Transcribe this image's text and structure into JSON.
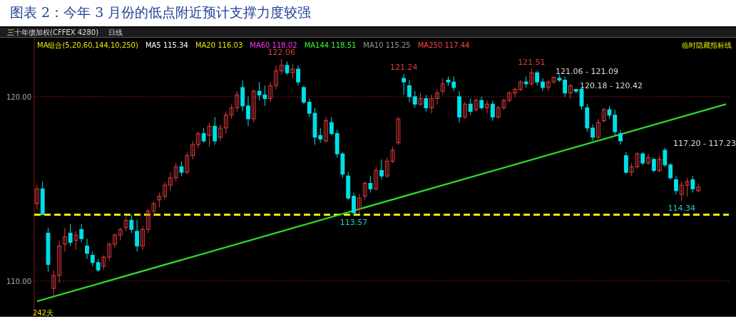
{
  "chart_data": {
    "type": "candlestick",
    "title": "图表 2：今年 3 月份的低点附近预计支撑力度较强",
    "categories": [
      null,
      null,
      null,
      null,
      null,
      null,
      null,
      null,
      null,
      null,
      null,
      null,
      null,
      null,
      null,
      null,
      null,
      null,
      null,
      null,
      null,
      null,
      null,
      null,
      null,
      null,
      null,
      null,
      null,
      null,
      null,
      null,
      null,
      null,
      null,
      null,
      null,
      null,
      null,
      null,
      null,
      null,
      null,
      null,
      null,
      null,
      null,
      null,
      null,
      null,
      null,
      null,
      null,
      null,
      null,
      null,
      null,
      null,
      null,
      null,
      null,
      null,
      null,
      null,
      null,
      null,
      null,
      null,
      null,
      null,
      null,
      null,
      null,
      null,
      null,
      null,
      null,
      null,
      null,
      null,
      null,
      null,
      null,
      null,
      null,
      null,
      null,
      null,
      null,
      null,
      null,
      null,
      null,
      null,
      null,
      null,
      null,
      null,
      null,
      null,
      null,
      null,
      null,
      null,
      null,
      null,
      null,
      null,
      null,
      null,
      null,
      null,
      null,
      null,
      null,
      null,
      null,
      null,
      null,
      null,
      null,
      null,
      null,
      null,
      null
    ],
    "ohlc": [
      [
        114.2,
        115.2,
        113.9,
        115.0
      ],
      [
        115.0,
        115.4,
        113.6,
        113.6
      ],
      [
        112.6,
        112.9,
        110.5,
        110.9
      ],
      [
        109.6,
        110.6,
        109.2,
        110.3
      ],
      [
        110.3,
        112.2,
        109.9,
        111.9
      ],
      [
        112.0,
        112.9,
        111.6,
        112.4
      ],
      [
        112.6,
        113.1,
        111.9,
        112.1
      ],
      [
        112.2,
        112.7,
        111.7,
        112.5
      ],
      [
        112.8,
        113.1,
        112.1,
        112.3
      ],
      [
        111.9,
        112.3,
        111.2,
        111.5
      ],
      [
        111.4,
        111.6,
        110.8,
        111.0
      ],
      [
        111.0,
        111.2,
        110.5,
        110.6
      ],
      [
        110.8,
        111.4,
        110.6,
        111.3
      ],
      [
        111.3,
        112.1,
        111.1,
        112.0
      ],
      [
        112.0,
        112.6,
        111.8,
        112.5
      ],
      [
        112.5,
        112.9,
        112.2,
        112.8
      ],
      [
        112.9,
        113.5,
        112.7,
        113.3
      ],
      [
        113.3,
        113.6,
        112.6,
        112.8
      ],
      [
        112.7,
        113.3,
        111.6,
        111.9
      ],
      [
        111.9,
        113.0,
        111.7,
        112.8
      ],
      [
        112.8,
        113.9,
        112.6,
        113.8
      ],
      [
        113.8,
        114.3,
        113.5,
        114.2
      ],
      [
        114.4,
        114.8,
        114.0,
        114.6
      ],
      [
        114.6,
        115.4,
        114.4,
        115.2
      ],
      [
        115.2,
        115.9,
        114.9,
        115.6
      ],
      [
        115.6,
        116.4,
        115.4,
        116.2
      ],
      [
        116.2,
        116.5,
        115.7,
        115.9
      ],
      [
        115.9,
        117.0,
        115.8,
        116.8
      ],
      [
        116.8,
        117.6,
        116.6,
        117.4
      ],
      [
        117.4,
        118.1,
        117.2,
        118.0
      ],
      [
        118.0,
        118.3,
        117.5,
        117.6
      ],
      [
        117.9,
        118.6,
        117.3,
        118.4
      ],
      [
        118.4,
        118.9,
        117.4,
        117.6
      ],
      [
        117.8,
        118.5,
        117.6,
        118.3
      ],
      [
        118.3,
        119.2,
        118.0,
        119.0
      ],
      [
        119.0,
        119.6,
        118.8,
        119.4
      ],
      [
        119.4,
        120.3,
        119.2,
        120.1
      ],
      [
        120.5,
        120.9,
        119.2,
        119.5
      ],
      [
        119.5,
        120.0,
        118.4,
        118.8
      ],
      [
        118.8,
        120.4,
        118.6,
        120.3
      ],
      [
        120.3,
        120.8,
        119.8,
        120.1
      ],
      [
        120.1,
        120.6,
        119.5,
        119.9
      ],
      [
        119.9,
        120.8,
        119.7,
        120.6
      ],
      [
        120.6,
        121.7,
        120.4,
        121.4
      ],
      [
        121.4,
        122.06,
        121.2,
        121.7
      ],
      [
        121.7,
        121.9,
        121.2,
        121.3
      ],
      [
        121.3,
        121.8,
        121.0,
        121.5
      ],
      [
        121.5,
        121.7,
        120.6,
        120.8
      ],
      [
        120.5,
        120.6,
        119.6,
        119.7
      ],
      [
        119.7,
        119.9,
        118.9,
        119.1
      ],
      [
        119.1,
        119.4,
        117.4,
        117.8
      ],
      [
        117.9,
        118.3,
        117.5,
        117.7
      ],
      [
        117.6,
        118.9,
        117.5,
        118.7
      ],
      [
        118.6,
        118.9,
        117.9,
        118.0
      ],
      [
        118.0,
        118.2,
        116.7,
        116.9
      ],
      [
        116.9,
        117.0,
        115.6,
        115.8
      ],
      [
        115.7,
        115.9,
        114.4,
        114.5
      ],
      [
        114.6,
        114.8,
        113.57,
        113.7
      ],
      [
        113.9,
        114.7,
        113.6,
        114.5
      ],
      [
        114.6,
        115.4,
        114.4,
        115.3
      ],
      [
        115.3,
        115.7,
        114.8,
        115.0
      ],
      [
        115.0,
        116.2,
        114.9,
        116.0
      ],
      [
        116.0,
        116.6,
        115.5,
        115.7
      ],
      [
        115.7,
        116.7,
        115.6,
        116.5
      ],
      [
        116.5,
        117.3,
        116.4,
        117.1
      ],
      [
        117.5,
        118.9,
        117.4,
        118.8
      ],
      [
        121.0,
        121.24,
        120.1,
        120.8
      ],
      [
        120.6,
        120.9,
        119.7,
        120.0
      ],
      [
        120.0,
        120.3,
        119.4,
        119.6
      ],
      [
        119.6,
        120.2,
        119.5,
        119.9
      ],
      [
        119.9,
        120.1,
        119.2,
        119.4
      ],
      [
        119.4,
        120.1,
        119.1,
        119.9
      ],
      [
        119.9,
        120.4,
        119.6,
        120.2
      ],
      [
        120.3,
        121.0,
        120.1,
        120.7
      ],
      [
        120.9,
        121.1,
        120.6,
        120.8
      ],
      [
        120.8,
        121.1,
        120.3,
        120.5
      ],
      [
        120.0,
        120.3,
        118.6,
        118.9
      ],
      [
        118.9,
        119.7,
        118.8,
        119.6
      ],
      [
        119.6,
        119.9,
        119.0,
        119.2
      ],
      [
        119.3,
        119.9,
        119.2,
        119.8
      ],
      [
        119.8,
        120.0,
        119.3,
        119.4
      ],
      [
        119.4,
        119.8,
        119.1,
        119.6
      ],
      [
        119.6,
        119.8,
        118.7,
        118.9
      ],
      [
        118.9,
        119.5,
        118.8,
        119.4
      ],
      [
        119.4,
        119.9,
        119.3,
        119.8
      ],
      [
        119.8,
        120.3,
        119.7,
        120.2
      ],
      [
        120.2,
        120.5,
        120.0,
        120.4
      ],
      [
        120.4,
        120.9,
        120.3,
        120.8
      ],
      [
        120.8,
        121.1,
        120.5,
        120.7
      ],
      [
        120.7,
        121.51,
        120.6,
        121.3
      ],
      [
        121.3,
        121.4,
        120.6,
        120.8
      ],
      [
        120.8,
        121.0,
        120.3,
        120.5
      ],
      [
        120.5,
        120.9,
        120.3,
        120.8
      ],
      [
        120.8,
        121.09,
        120.7,
        121.06
      ],
      [
        121.0,
        121.2,
        120.8,
        120.9
      ],
      [
        120.9,
        121.1,
        120.0,
        120.2
      ],
      [
        120.2,
        120.7,
        119.9,
        120.6
      ],
      [
        120.4,
        120.42,
        120.18,
        120.3
      ],
      [
        120.4,
        120.5,
        119.3,
        119.5
      ],
      [
        119.4,
        119.6,
        118.1,
        118.3
      ],
      [
        118.3,
        118.5,
        117.6,
        117.8
      ],
      [
        117.8,
        118.8,
        117.7,
        118.6
      ],
      [
        118.7,
        119.4,
        118.6,
        119.3
      ],
      [
        119.3,
        119.5,
        118.8,
        119.0
      ],
      [
        119.0,
        119.3,
        117.9,
        118.1
      ],
      [
        118.0,
        118.2,
        117.4,
        117.6
      ],
      [
        116.8,
        117.0,
        115.8,
        115.9
      ],
      [
        115.9,
        116.4,
        115.7,
        116.2
      ],
      [
        116.2,
        117.0,
        116.1,
        116.9
      ],
      [
        116.9,
        117.0,
        116.3,
        116.4
      ],
      [
        116.4,
        116.9,
        116.3,
        116.7
      ],
      [
        116.6,
        116.7,
        115.9,
        116.0
      ],
      [
        116.0,
        116.8,
        115.9,
        116.6
      ],
      [
        117.1,
        117.23,
        116.2,
        116.3
      ],
      [
        116.3,
        116.4,
        115.5,
        115.6
      ],
      [
        115.5,
        115.7,
        114.7,
        114.9
      ],
      [
        114.7,
        115.4,
        114.34,
        115.2
      ],
      [
        115.2,
        115.6,
        114.6,
        115.4
      ],
      [
        115.5,
        115.7,
        114.8,
        115.0
      ],
      [
        114.9,
        115.3,
        114.8,
        115.1
      ],
      null,
      null,
      null,
      null,
      null
    ],
    "colors": [
      "#e03c3c",
      "#00e0e8",
      "#00e0e8",
      "#e03c3c",
      "#e03c3c",
      "#e03c3c",
      "#00e0e8",
      "#e03c3c",
      "#00e0e8",
      "#00e0e8",
      "#00e0e8",
      "#00e0e8",
      "#e03c3c",
      "#e03c3c",
      "#e03c3c",
      "#e03c3c",
      "#e03c3c",
      "#00e0e8",
      "#00e0e8",
      "#e03c3c",
      "#e03c3c",
      "#e03c3c",
      "#e03c3c",
      "#e03c3c",
      "#e03c3c",
      "#e03c3c",
      "#00e0e8",
      "#e03c3c",
      "#e03c3c",
      "#e03c3c",
      "#00e0e8",
      "#e03c3c",
      "#00e0e8",
      "#e03c3c",
      "#e03c3c",
      "#e03c3c",
      "#e03c3c",
      "#00e0e8",
      "#00e0e8",
      "#e03c3c",
      "#00e0e8",
      "#00e0e8",
      "#e03c3c",
      "#e03c3c",
      "#e03c3c",
      "#00e0e8",
      "#e03c3c",
      "#00e0e8",
      "#00e0e8",
      "#00e0e8",
      "#00e0e8",
      "#00e0e8",
      "#e03c3c",
      "#00e0e8",
      "#00e0e8",
      "#00e0e8",
      "#00e0e8",
      "#00e0e8",
      "#e03c3c",
      "#e03c3c",
      "#00e0e8",
      "#e03c3c",
      "#00e0e8",
      "#e03c3c",
      "#e03c3c",
      "#e03c3c",
      "#00e0e8",
      "#00e0e8",
      "#00e0e8",
      "#e03c3c",
      "#00e0e8",
      "#e03c3c",
      "#e03c3c",
      "#e03c3c",
      "#00e0e8",
      "#00e0e8",
      "#00e0e8",
      "#e03c3c",
      "#00e0e8",
      "#e03c3c",
      "#00e0e8",
      "#e03c3c",
      "#00e0e8",
      "#e03c3c",
      "#e03c3c",
      "#e03c3c",
      "#e03c3c",
      "#e03c3c",
      "#00e0e8",
      "#e03c3c",
      "#00e0e8",
      "#00e0e8",
      "#e03c3c",
      "#e03c3c",
      "#00e0e8",
      "#00e0e8",
      "#e03c3c",
      "#00e0e8",
      "#00e0e8",
      "#00e0e8",
      "#00e0e8",
      "#e03c3c",
      "#e03c3c",
      "#00e0e8",
      "#00e0e8",
      "#00e0e8",
      "#00e0e8",
      "#e03c3c",
      "#e03c3c",
      "#00e0e8",
      "#e03c3c",
      "#00e0e8",
      "#e03c3c",
      "#00e0e8",
      "#00e0e8",
      "#00e0e8",
      "#e03c3c",
      "#e03c3c",
      "#00e0e8",
      "#e03c3c",
      null,
      null,
      null,
      null,
      null
    ],
    "series": [
      {
        "type": "line",
        "color": "#2ee02e",
        "values": [
          108.9,
          null,
          null,
          null,
          null,
          null,
          null,
          null,
          null,
          null,
          null,
          null,
          null,
          null,
          null,
          null,
          null,
          null,
          null,
          null,
          null,
          null,
          null,
          null,
          null,
          null,
          null,
          null,
          null,
          null,
          null,
          null,
          null,
          null,
          null,
          null,
          null,
          null,
          null,
          null,
          null,
          null,
          null,
          null,
          null,
          null,
          null,
          null,
          null,
          null,
          null,
          null,
          null,
          null,
          null,
          null,
          null,
          null,
          null,
          null,
          null,
          null,
          null,
          null,
          null,
          null,
          null,
          null,
          null,
          null,
          null,
          null,
          null,
          null,
          null,
          null,
          null,
          null,
          null,
          null,
          null,
          null,
          null,
          null,
          null,
          null,
          null,
          null,
          null,
          null,
          null,
          null,
          null,
          null,
          null,
          null,
          null,
          null,
          null,
          null,
          null,
          null,
          null,
          null,
          null,
          null,
          null,
          null,
          null,
          null,
          null,
          null,
          null,
          null,
          null,
          null,
          null,
          null,
          null,
          null,
          null,
          null,
          null,
          null,
          119.6
        ]
      }
    ],
    "ylim": [
      108.1,
      123.2
    ],
    "yticks": [
      {
        "value": 120,
        "label": "120.00"
      },
      {
        "value": 110,
        "label": "110.00"
      }
    ],
    "grid": "y",
    "ref_lines": [
      {
        "axis": "y",
        "value": 113.6,
        "color": "#ffff00",
        "line_style": "dashed"
      }
    ],
    "annotations": [
      "三十年债加权(CFFEX 4280)",
      "日线",
      "MA组合(5,20,60,144,10,250)",
      "MA5 115.34",
      "MA20 116.03",
      "MA60 118.02",
      "MA144 118.51",
      "MA10 115.25",
      "MA250 117.44",
      "临时隐藏指标线",
      "242天",
      {
        "text": "122.06",
        "y": 122.06
      },
      {
        "text": "121.24",
        "y": 121.24
      },
      {
        "text": "121.51",
        "y": 121.51
      },
      {
        "text": "113.57",
        "y": 113.57
      },
      {
        "text": "114.34",
        "y": 114.34
      },
      "121.06 - 121.09",
      "120.18 - 120.42",
      "117.20 - 117.23"
    ]
  }
}
